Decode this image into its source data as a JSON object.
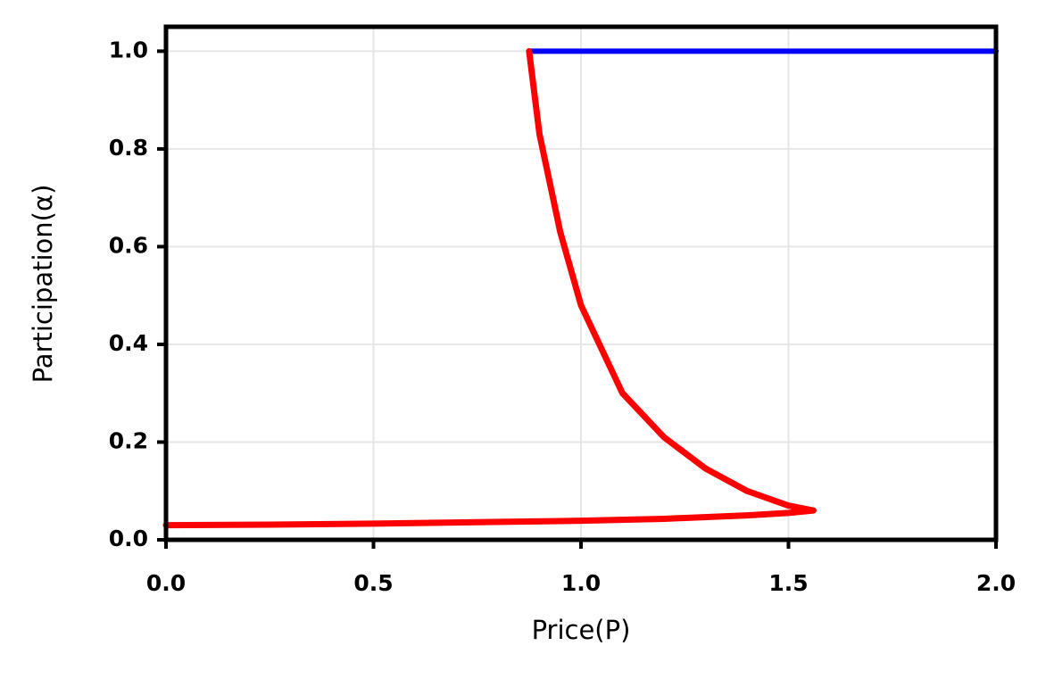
{
  "chart_data": {
    "type": "line",
    "xlabel": "Price(P)",
    "ylabel": "Participation(α)",
    "xlim": [
      0,
      2
    ],
    "ylim": [
      0,
      1.05
    ],
    "xticks": [
      {
        "value": 0,
        "label": "0.0"
      },
      0.5,
      {
        "value": 1,
        "label": "1.0"
      },
      1.5,
      {
        "value": 2,
        "label": "2.0"
      }
    ],
    "yticks": [
      {
        "value": 0,
        "label": "0.0"
      },
      0.2,
      0.4,
      0.6,
      0.8,
      {
        "value": 1,
        "label": "1.0"
      }
    ],
    "grid": true,
    "series": [
      {
        "color": "#0000ff",
        "x": [
          0.875,
          2.0
        ],
        "values": [
          1.0,
          1.0
        ]
      },
      {
        "color": "#ff0000",
        "x": [
          0,
          0.25,
          0.5,
          0.75,
          1.0,
          1.2,
          1.4,
          1.5,
          1.56,
          1.5,
          1.4,
          1.3,
          1.2,
          1.1,
          1.0,
          0.95,
          0.9,
          0.875
        ],
        "values": [
          0.03,
          0.031,
          0.033,
          0.036,
          0.039,
          0.043,
          0.05,
          0.055,
          0.06,
          0.07,
          0.1,
          0.146,
          0.21,
          0.3,
          0.48,
          0.63,
          0.83,
          1.0
        ]
      }
    ]
  }
}
